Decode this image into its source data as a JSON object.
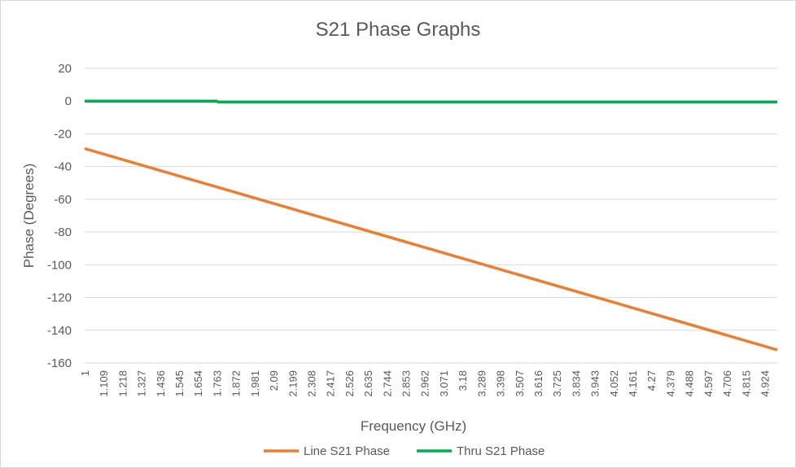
{
  "chart_data": {
    "type": "line",
    "title": "S21 Phase Graphs",
    "xlabel": "Frequency (GHz)",
    "ylabel": "Phase (Degrees)",
    "ylim": [
      -160,
      20
    ],
    "yticks": [
      "20",
      "0",
      "-20",
      "-40",
      "-60",
      "-80",
      "-100",
      "-120",
      "-140",
      "-160"
    ],
    "xlim": [
      1,
      4.997
    ],
    "grid": true,
    "legend_position": "bottom",
    "categories": [
      "1",
      "1.109",
      "1.218",
      "1.327",
      "1.436",
      "1.545",
      "1.654",
      "1.763",
      "1.872",
      "1.981",
      "2.09",
      "2.199",
      "2.308",
      "2.417",
      "2.526",
      "2.635",
      "2.744",
      "2.853",
      "2.962",
      "3.071",
      "3.18",
      "3.289",
      "3.398",
      "3.507",
      "3.616",
      "3.725",
      "3.834",
      "3.943",
      "4.052",
      "4.161",
      "4.27",
      "4.379",
      "4.488",
      "4.597",
      "4.706",
      "4.815",
      "4.924"
    ],
    "series": [
      {
        "name": "Line S21 Phase",
        "color": "#ed7d31",
        "x": [
          1,
          4.997
        ],
        "values": [
          -29,
          -152
        ]
      },
      {
        "name": "Thru S21 Phase",
        "color": "#00b050",
        "x": [
          1,
          1.763,
          1.767,
          4.997
        ],
        "values": [
          0,
          0,
          -0.5,
          -0.5
        ]
      }
    ]
  }
}
